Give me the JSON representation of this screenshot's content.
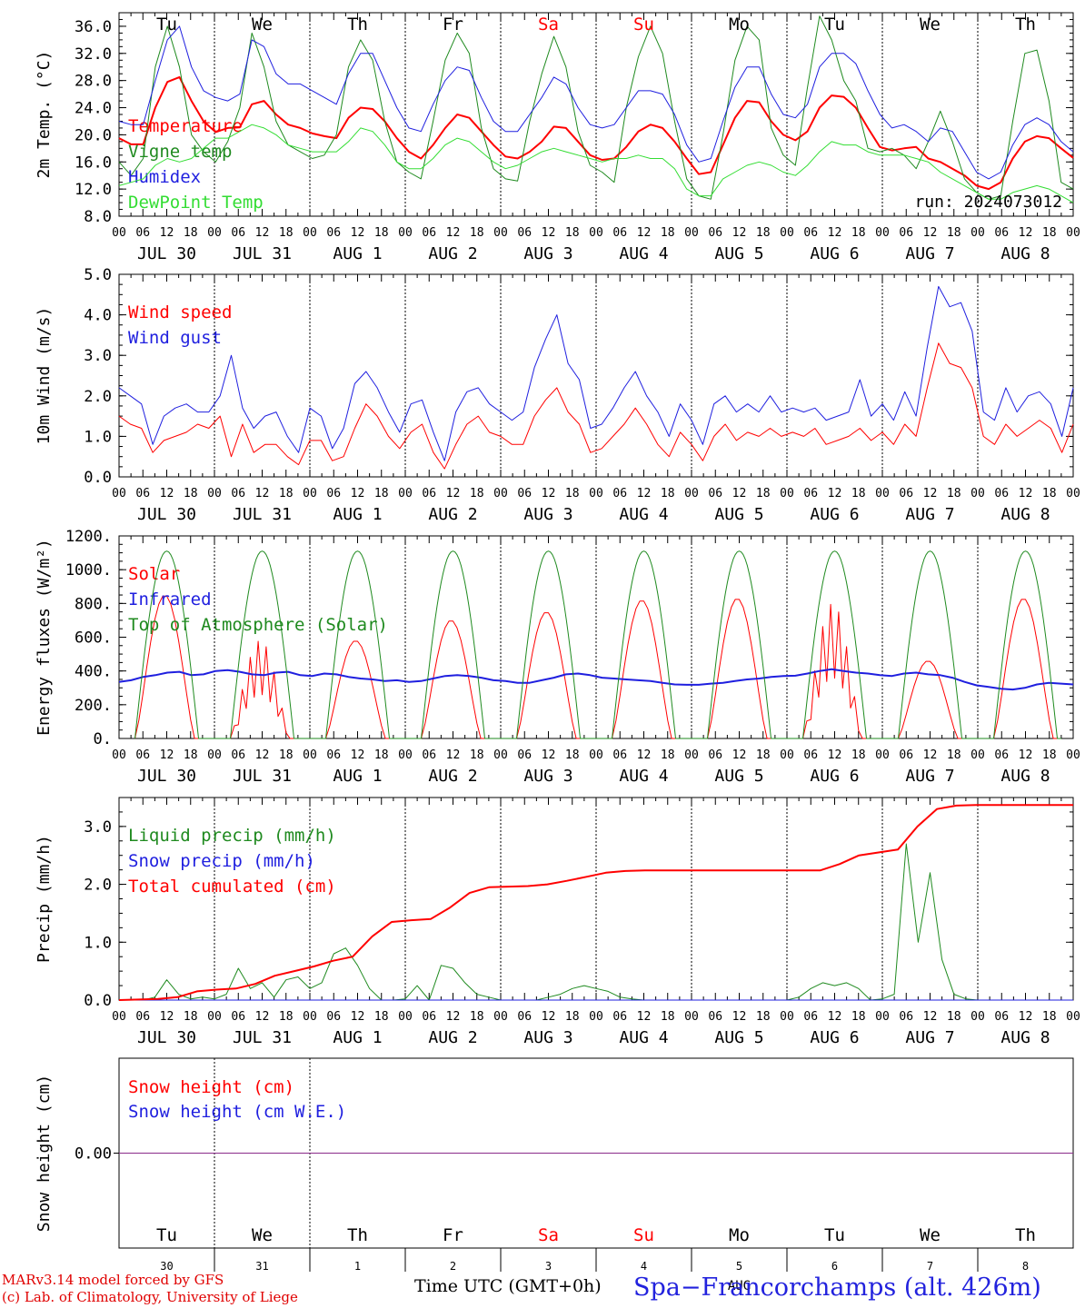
{
  "days": [
    {
      "abbr": "Tu",
      "num": "30",
      "date": "JUL 30",
      "weekend": false
    },
    {
      "abbr": "We",
      "num": "31",
      "date": "JUL 31",
      "weekend": false
    },
    {
      "abbr": "Th",
      "num": "1",
      "date": "AUG  1",
      "weekend": false
    },
    {
      "abbr": "Fr",
      "num": "2",
      "date": "AUG  2",
      "weekend": false
    },
    {
      "abbr": "Sa",
      "num": "3",
      "date": "AUG  3",
      "weekend": true
    },
    {
      "abbr": "Su",
      "num": "4",
      "date": "AUG  4",
      "weekend": true
    },
    {
      "abbr": "Mo",
      "num": "5",
      "date": "AUG  5",
      "weekend": false
    },
    {
      "abbr": "Tu",
      "num": "6",
      "date": "AUG  6",
      "weekend": false
    },
    {
      "abbr": "We",
      "num": "7",
      "date": "AUG  7",
      "weekend": false
    },
    {
      "abbr": "Th",
      "num": "8",
      "date": "AUG  8",
      "weekend": false
    }
  ],
  "hour_ticks": [
    "00",
    "06",
    "12",
    "18"
  ],
  "last_tick": "00",
  "snow_month_label": "AUG",
  "colors": {
    "red": "#ff0000",
    "blue": "#1f1fdf",
    "green": "#1f8a1f",
    "lightgreen": "#33dd33",
    "purple": "#8a2b8a",
    "weekend": "#ff0000"
  },
  "chart_data": [
    {
      "type": "line",
      "ylabel": "2m Temp. (°C)",
      "ylim": [
        8,
        38
      ],
      "yticks": [
        "8.0",
        "12.0",
        "16.0",
        "20.0",
        "24.0",
        "28.0",
        "32.0",
        "36.0"
      ],
      "x_unit": "hours since JUL 30 00 UTC (3-hourly points)",
      "annotation": "run: 2024073012",
      "series": [
        {
          "name": "Temperature",
          "color": "red",
          "width": 2,
          "values": [
            19.5,
            18.6,
            18.6,
            24.0,
            27.8,
            28.5,
            25.0,
            22.0,
            20.4,
            21.0,
            21.1,
            24.5,
            25.0,
            23.0,
            21.5,
            21.0,
            20.2,
            19.8,
            19.5,
            22.5,
            24.0,
            23.8,
            22.0,
            19.5,
            17.5,
            16.5,
            18.5,
            21.0,
            23.0,
            22.5,
            20.5,
            18.5,
            16.8,
            16.5,
            17.5,
            19.0,
            21.2,
            21.0,
            19.0,
            17.0,
            16.3,
            16.5,
            18.2,
            20.5,
            21.5,
            21.0,
            19.0,
            16.5,
            14.2,
            14.5,
            18.5,
            22.5,
            25.0,
            24.8,
            22.0,
            20.0,
            19.2,
            20.5,
            24.0,
            25.8,
            25.6,
            24.0,
            21.0,
            18.2,
            17.7,
            18.0,
            18.2,
            16.5,
            16.0,
            15.0,
            14.0,
            12.5,
            12.0,
            13.0,
            16.5,
            19.0,
            19.8,
            19.5,
            18.0,
            16.6
          ]
        },
        {
          "name": "Vigne temp",
          "color": "green",
          "width": 1,
          "values": [
            16.0,
            14.0,
            16.5,
            30.0,
            36.0,
            30.0,
            20.0,
            17.5,
            16.0,
            19.0,
            24.0,
            35.0,
            30.0,
            22.0,
            18.5,
            17.5,
            16.5,
            17.0,
            20.0,
            30.0,
            34.0,
            31.0,
            22.0,
            16.0,
            14.5,
            13.5,
            22.0,
            31.0,
            35.0,
            32.0,
            21.0,
            15.0,
            13.5,
            13.2,
            22.0,
            29.0,
            34.5,
            30.0,
            20.5,
            15.5,
            14.5,
            13.0,
            24.0,
            31.5,
            36.0,
            32.0,
            22.0,
            13.5,
            11.0,
            10.5,
            20.0,
            31.0,
            36.0,
            34.0,
            21.0,
            17.0,
            15.5,
            27.0,
            37.5,
            34.0,
            28.0,
            25.0,
            18.0,
            17.5,
            18.0,
            17.0,
            15.0,
            19.0,
            23.5,
            19.0,
            13.5,
            11.5,
            10.5,
            11.0,
            22.0,
            32.0,
            32.5,
            25.0,
            13.0,
            12.0
          ]
        },
        {
          "name": "Humidex",
          "color": "blue",
          "width": 1,
          "values": [
            22.0,
            21.5,
            21.5,
            28.0,
            34.0,
            36.0,
            30.0,
            26.5,
            25.5,
            25.0,
            26.0,
            34.0,
            33.0,
            29.0,
            27.5,
            27.5,
            26.5,
            25.5,
            24.5,
            29.0,
            32.0,
            32.0,
            28.0,
            24.0,
            21.0,
            20.5,
            24.5,
            28.0,
            30.0,
            29.5,
            25.5,
            22.0,
            20.5,
            20.5,
            23.0,
            25.5,
            28.5,
            27.5,
            24.0,
            21.5,
            21.0,
            21.5,
            24.0,
            26.5,
            26.5,
            26.0,
            23.0,
            18.5,
            16.0,
            16.5,
            22.0,
            27.0,
            30.0,
            30.0,
            26.0,
            23.0,
            22.5,
            24.5,
            30.0,
            32.0,
            32.0,
            30.5,
            26.5,
            23.0,
            21.0,
            21.5,
            20.5,
            19.0,
            21.0,
            20.5,
            17.5,
            14.5,
            13.5,
            14.5,
            18.5,
            21.5,
            22.5,
            21.5,
            19.0,
            17.5
          ]
        },
        {
          "name": "DewPoint Temp",
          "color": "lightgreen",
          "width": 1,
          "values": [
            12.5,
            13.0,
            13.5,
            15.5,
            16.5,
            16.0,
            16.5,
            18.0,
            19.5,
            19.5,
            20.5,
            21.5,
            21.0,
            20.0,
            18.5,
            18.0,
            17.5,
            17.5,
            17.5,
            19.0,
            21.0,
            20.5,
            18.5,
            16.0,
            15.0,
            15.0,
            16.5,
            18.5,
            19.5,
            19.0,
            17.5,
            16.0,
            15.0,
            15.5,
            16.5,
            17.5,
            18.0,
            17.5,
            17.0,
            16.5,
            16.0,
            16.5,
            16.5,
            17.0,
            16.5,
            16.5,
            15.0,
            12.0,
            11.0,
            11.0,
            13.5,
            14.5,
            15.5,
            16.0,
            15.5,
            14.5,
            14.0,
            15.5,
            17.5,
            19.0,
            18.5,
            18.5,
            17.5,
            17.0,
            17.0,
            17.0,
            16.5,
            16.0,
            14.5,
            13.5,
            12.5,
            11.5,
            10.5,
            10.5,
            11.5,
            12.0,
            12.5,
            12.0,
            11.0,
            10.0
          ]
        }
      ]
    },
    {
      "type": "line",
      "ylabel": "10m Wind (m/s)",
      "ylim": [
        0,
        5
      ],
      "yticks": [
        "0.0",
        "1.0",
        "2.0",
        "3.0",
        "4.0",
        "5.0"
      ],
      "series": [
        {
          "name": "Wind speed",
          "color": "red",
          "width": 1,
          "values": [
            1.5,
            1.3,
            1.2,
            0.6,
            0.9,
            1.0,
            1.1,
            1.3,
            1.2,
            1.5,
            0.5,
            1.3,
            0.6,
            0.8,
            0.8,
            0.5,
            0.3,
            0.9,
            0.9,
            0.4,
            0.5,
            1.2,
            1.8,
            1.5,
            1.0,
            0.7,
            1.1,
            1.3,
            0.6,
            0.2,
            0.8,
            1.3,
            1.5,
            1.1,
            1.0,
            0.8,
            0.8,
            1.5,
            1.9,
            2.2,
            1.6,
            1.3,
            0.6,
            0.7,
            1.0,
            1.3,
            1.7,
            1.3,
            0.8,
            0.5,
            1.1,
            0.8,
            0.4,
            1.0,
            1.3,
            0.9,
            1.1,
            1.0,
            1.2,
            1.0,
            1.1,
            1.0,
            1.2,
            0.8,
            0.9,
            1.0,
            1.2,
            0.9,
            1.1,
            0.8,
            1.3,
            1.0,
            2.2,
            3.3,
            2.8,
            2.7,
            2.2,
            1.0,
            0.8,
            1.3,
            1.0,
            1.2,
            1.4,
            1.2,
            0.6,
            1.3
          ]
        },
        {
          "name": "Wind gust",
          "color": "blue",
          "width": 1,
          "values": [
            2.2,
            2.0,
            1.8,
            0.8,
            1.5,
            1.7,
            1.8,
            1.6,
            1.6,
            2.0,
            3.0,
            1.7,
            1.2,
            1.5,
            1.6,
            1.0,
            0.6,
            1.7,
            1.5,
            0.7,
            1.2,
            2.3,
            2.6,
            2.2,
            1.6,
            1.1,
            1.8,
            1.9,
            1.1,
            0.4,
            1.6,
            2.1,
            2.2,
            1.8,
            1.6,
            1.4,
            1.6,
            2.7,
            3.4,
            4.0,
            2.8,
            2.4,
            1.2,
            1.3,
            1.7,
            2.2,
            2.6,
            2.0,
            1.6,
            1.0,
            1.8,
            1.4,
            0.8,
            1.8,
            2.0,
            1.6,
            1.8,
            1.6,
            2.0,
            1.6,
            1.7,
            1.6,
            1.7,
            1.4,
            1.5,
            1.6,
            2.4,
            1.5,
            1.8,
            1.4,
            2.1,
            1.5,
            3.2,
            4.7,
            4.2,
            4.3,
            3.6,
            1.6,
            1.4,
            2.2,
            1.6,
            2.0,
            2.1,
            1.8,
            1.0,
            2.2
          ]
        }
      ]
    },
    {
      "type": "line",
      "ylabel": "Energy fluxes (W/m²)",
      "ylim": [
        0,
        1200
      ],
      "yticks": [
        "0.",
        "200.",
        "400.",
        "600.",
        "800.",
        "1000.",
        "1200."
      ],
      "series": [
        {
          "name": "Solar",
          "color": "red",
          "width": 1,
          "peaks": [
            850,
            580,
            580,
            700,
            750,
            820,
            830,
            800,
            460,
            830
          ]
        },
        {
          "name": "Infrared",
          "color": "blue",
          "width": 2,
          "values": [
            335,
            345,
            365,
            375,
            390,
            395,
            375,
            380,
            400,
            405,
            395,
            380,
            375,
            390,
            395,
            375,
            370,
            385,
            380,
            365,
            355,
            350,
            340,
            345,
            335,
            340,
            355,
            370,
            375,
            370,
            360,
            345,
            340,
            330,
            330,
            345,
            360,
            380,
            385,
            375,
            360,
            355,
            350,
            345,
            340,
            330,
            320,
            318,
            318,
            325,
            330,
            340,
            350,
            355,
            365,
            370,
            372,
            385,
            400,
            410,
            400,
            390,
            385,
            375,
            370,
            385,
            390,
            380,
            375,
            360,
            335,
            315,
            305,
            295,
            290,
            300,
            320,
            330,
            325,
            320
          ]
        },
        {
          "name": "Top of Atmosphere (Solar)",
          "color": "green",
          "width": 1,
          "peak": 1110
        }
      ]
    },
    {
      "type": "line",
      "ylabel": "Precip (mm/h)",
      "ylim": [
        0,
        3.5
      ],
      "yticks": [
        "0.0",
        "1.0",
        "2.0",
        "3.0"
      ],
      "series": [
        {
          "name": "Liquid precip (mm/h)",
          "color": "green",
          "width": 1,
          "values": [
            0,
            0,
            0,
            0.05,
            0.35,
            0.1,
            0.02,
            0.05,
            0.02,
            0.1,
            0.55,
            0.2,
            0.3,
            0.05,
            0.35,
            0.4,
            0.2,
            0.3,
            0.8,
            0.9,
            0.6,
            0.2,
            0,
            0,
            0.02,
            0.25,
            0,
            0.6,
            0.55,
            0.3,
            0.1,
            0.05,
            0,
            0,
            0,
            0,
            0.05,
            0.1,
            0.2,
            0.25,
            0.2,
            0.15,
            0.05,
            0.02,
            0,
            0,
            0,
            0,
            0,
            0,
            0,
            0,
            0,
            0,
            0,
            0,
            0,
            0.05,
            0.2,
            0.3,
            0.25,
            0.3,
            0.2,
            0,
            0.02,
            0.1,
            2.7,
            1.0,
            2.2,
            0.7,
            0.1,
            0.02,
            0,
            0,
            0,
            0,
            0,
            0,
            0,
            0,
            0
          ]
        },
        {
          "name": "Snow precip (mm/h)",
          "color": "blue",
          "width": 1,
          "values": [
            0
          ]
        },
        {
          "name": "Total cumulated (cm)",
          "color": "red",
          "width": 2,
          "values": [
            0,
            0.01,
            0.02,
            0.05,
            0.15,
            0.18,
            0.2,
            0.28,
            0.42,
            0.5,
            0.58,
            0.68,
            0.75,
            1.1,
            1.35,
            1.38,
            1.4,
            1.6,
            1.85,
            1.95,
            1.96,
            1.97,
            2.0,
            2.06,
            2.13,
            2.2,
            2.23,
            2.24,
            2.24,
            2.24,
            2.24,
            2.24,
            2.24,
            2.24,
            2.24,
            2.24,
            2.24,
            2.35,
            2.5,
            2.55,
            2.6,
            3.0,
            3.3,
            3.36,
            3.37,
            3.37,
            3.37,
            3.37,
            3.37,
            3.37
          ]
        }
      ]
    },
    {
      "type": "line",
      "ylabel": "Snow height (cm)",
      "ylim": [
        -1,
        1
      ],
      "yticks": [
        "0.00"
      ],
      "series": [
        {
          "name": "Snow height (cm)",
          "color": "red",
          "width": 1,
          "values": [
            0,
            0
          ]
        },
        {
          "name": "Snow height (cm W.E.)",
          "color": "blue",
          "width": 1,
          "values": [
            0,
            0
          ]
        }
      ]
    }
  ],
  "footer": {
    "credit_line1": "MARv3.14 model forced by GFS",
    "credit_line2": "(c) Lab. of Climatology, University of Liege",
    "xaxis_title": "Time UTC (GMT+0h)",
    "station": "Spa−Francorchamps (alt. 426m)"
  }
}
